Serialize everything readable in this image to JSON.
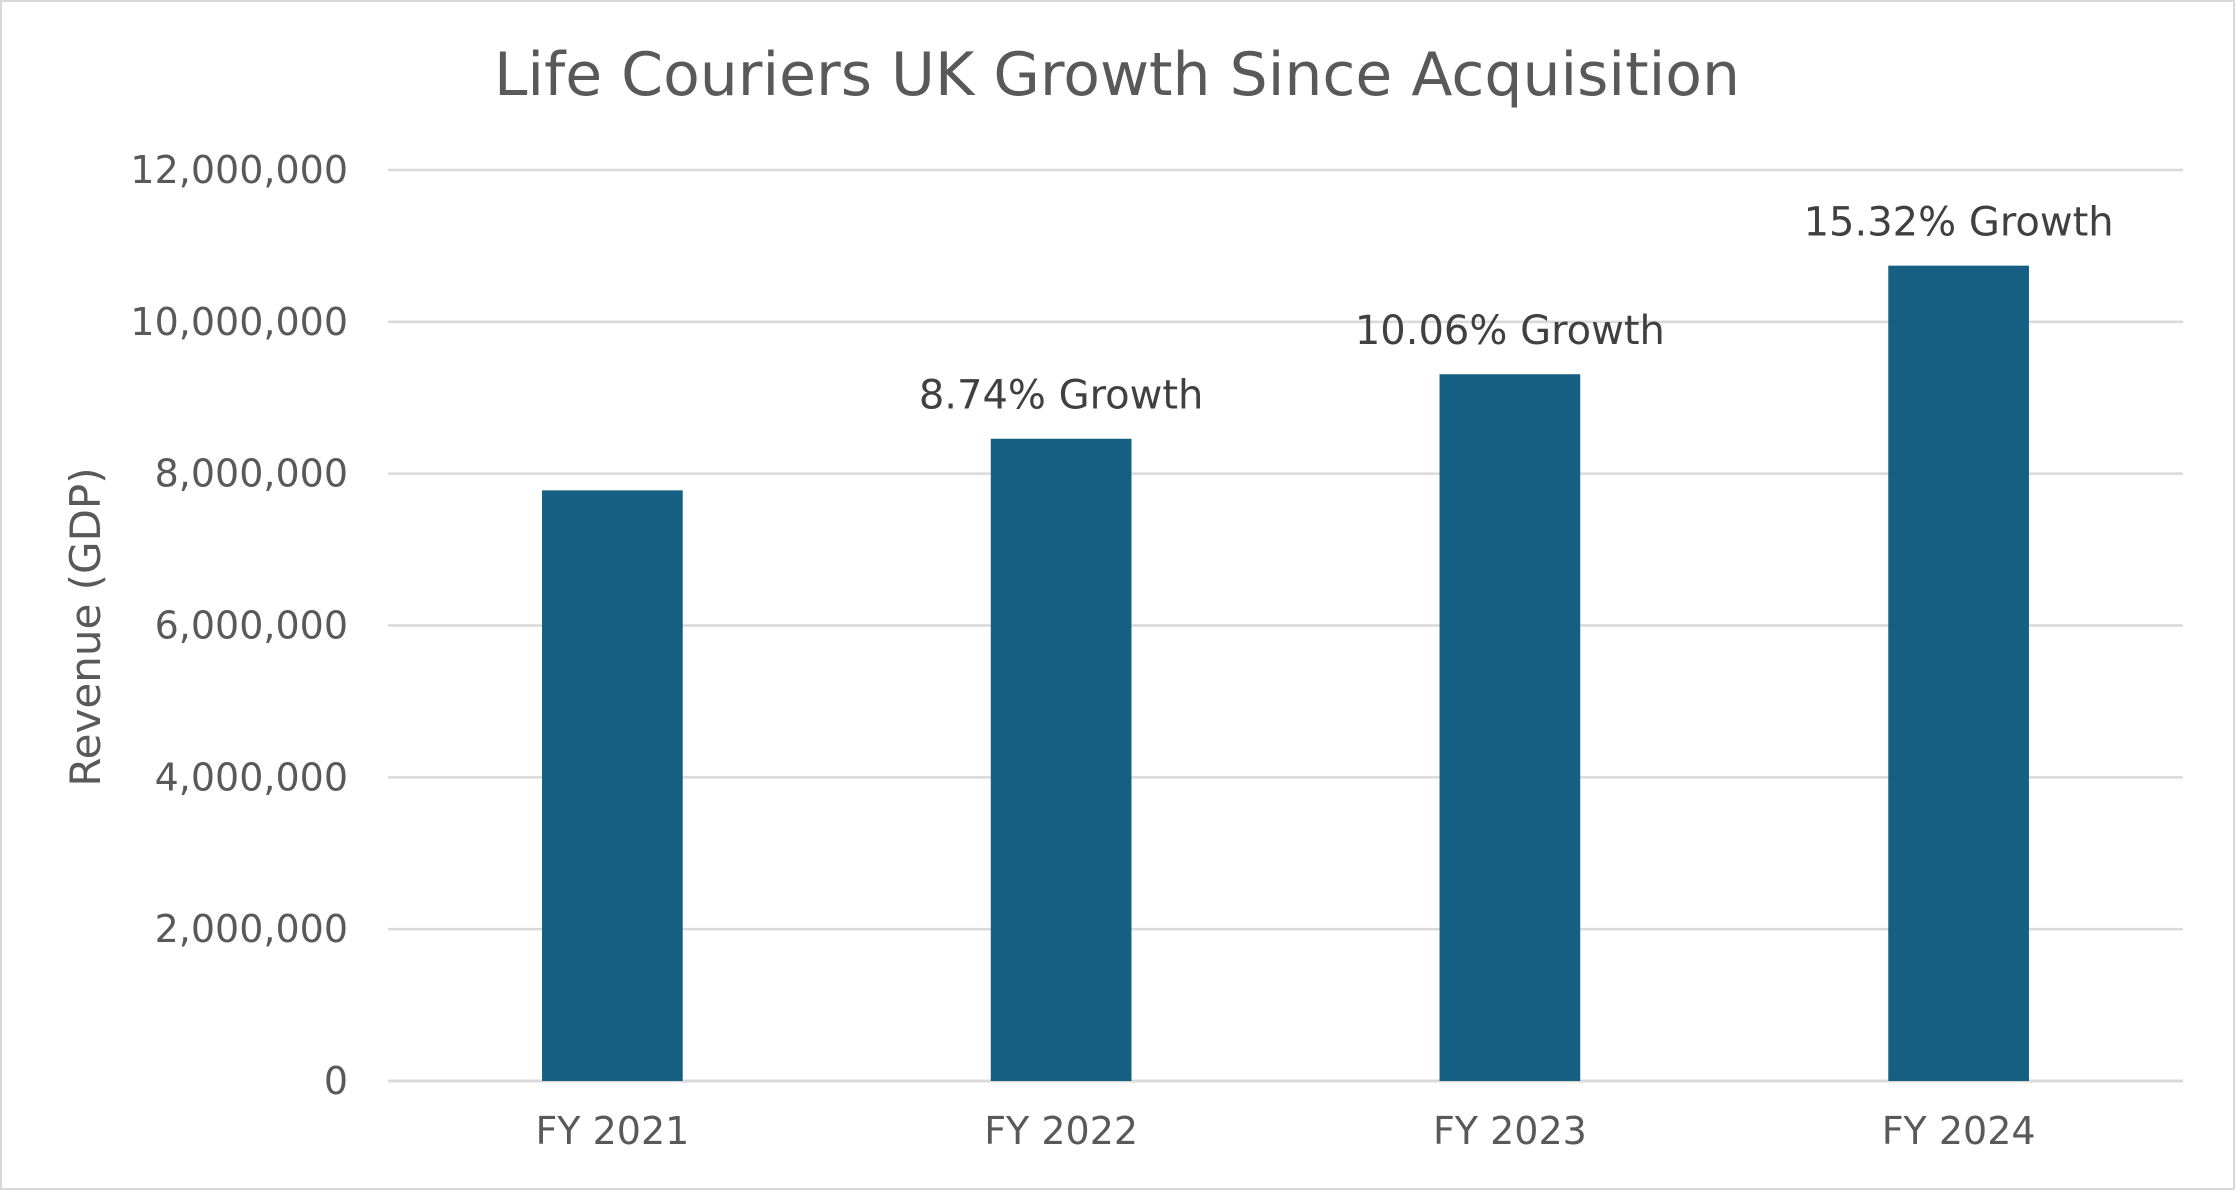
{
  "chart_data": {
    "type": "bar",
    "title": "Life Couriers UK Growth Since Acquisition",
    "xlabel": "",
    "ylabel": "Revenue (GDP)",
    "categories": [
      "FY 2021",
      "FY 2022",
      "FY 2023",
      "FY 2024"
    ],
    "values": [
      7780000,
      8460000,
      9310000,
      10740000
    ],
    "data_labels": [
      "",
      "8.74% Growth",
      "10.06% Growth",
      "15.32% Growth"
    ],
    "ylim": [
      0,
      12000000
    ],
    "yticks": [
      0,
      2000000,
      4000000,
      6000000,
      8000000,
      10000000,
      12000000
    ],
    "ytick_labels": [
      "0",
      "2,000,000",
      "4,000,000",
      "6,000,000",
      "8,000,000",
      "10,000,000",
      "12,000,000"
    ],
    "grid": true,
    "legend": "none",
    "bar_color": "#156082"
  }
}
